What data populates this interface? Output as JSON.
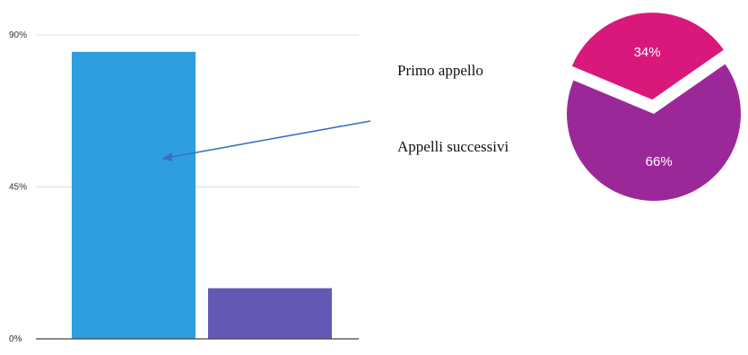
{
  "chart_data": [
    {
      "type": "bar",
      "categories": [
        "",
        ""
      ],
      "values": [
        85,
        15
      ],
      "colors": [
        "#2e9ee0",
        "#6359b4"
      ],
      "ylim": [
        0,
        90
      ],
      "yticks": [
        "0%",
        "45%",
        "90%"
      ],
      "grid": true,
      "title": "",
      "xlabel": "",
      "ylabel": ""
    },
    {
      "type": "pie",
      "slices": [
        {
          "label": "34%",
          "value": 34,
          "color": "#d8197b"
        },
        {
          "label": "66%",
          "value": 66,
          "color": "#9b2898"
        }
      ],
      "exploded": "34%"
    }
  ],
  "legend": {
    "items": [
      "Primo appello",
      "Appelli successivi"
    ],
    "arrow_color": "#3a6fc4"
  }
}
